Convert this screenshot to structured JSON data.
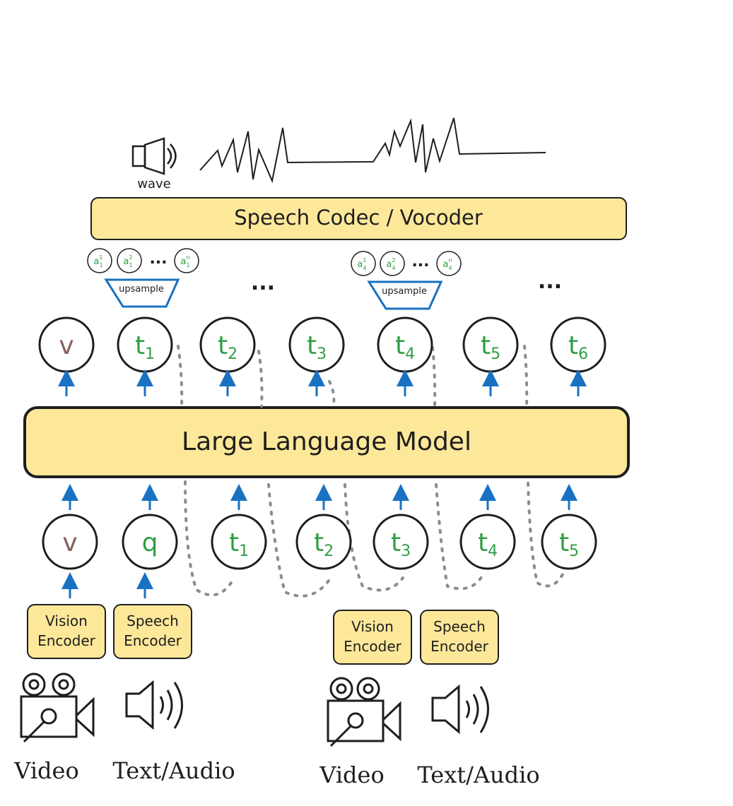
{
  "colors": {
    "yellow": "#fde89a",
    "green": "#2f9e44",
    "brown": "#846358",
    "blue": "#1971c2",
    "gray": "#868e96",
    "stroke": "#1e1e1e"
  },
  "wave_label": "wave",
  "vocoder_label": "Speech Codec / Vocoder",
  "llm_label": "Large Language Model",
  "upsample_label": "upsample",
  "ellipsis": "...",
  "output_row": [
    {
      "base": "v",
      "sub": "",
      "color": "brown"
    },
    {
      "base": "t",
      "sub": "1",
      "color": "green"
    },
    {
      "base": "t",
      "sub": "2",
      "color": "green"
    },
    {
      "base": "t",
      "sub": "3",
      "color": "green"
    },
    {
      "base": "t",
      "sub": "4",
      "color": "green"
    },
    {
      "base": "t",
      "sub": "5",
      "color": "green"
    },
    {
      "base": "t",
      "sub": "6",
      "color": "green"
    }
  ],
  "input_row": [
    {
      "base": "v",
      "sub": "",
      "color": "brown"
    },
    {
      "base": "q",
      "sub": "",
      "color": "green"
    },
    {
      "base": "t",
      "sub": "1",
      "color": "green"
    },
    {
      "base": "t",
      "sub": "2",
      "color": "green"
    },
    {
      "base": "t",
      "sub": "3",
      "color": "green"
    },
    {
      "base": "t",
      "sub": "4",
      "color": "green"
    },
    {
      "base": "t",
      "sub": "5",
      "color": "green"
    }
  ],
  "audio_groups": [
    {
      "tokens": [
        {
          "sup": "1",
          "sub": "1"
        },
        {
          "sup": "2",
          "sub": "1"
        },
        {
          "sup": "n",
          "sub": "1"
        }
      ]
    },
    {
      "tokens": [
        {
          "sup": "1",
          "sub": "4"
        },
        {
          "sup": "2",
          "sub": "4"
        },
        {
          "sup": "n",
          "sub": "4"
        }
      ]
    }
  ],
  "audio_base": "a",
  "encoders": [
    {
      "line1": "Vision",
      "line2": "Encoder"
    },
    {
      "line1": "Speech",
      "line2": "Encoder"
    },
    {
      "line1": "Vision",
      "line2": "Encoder"
    },
    {
      "line1": "Speech",
      "line2": "Encoder"
    }
  ],
  "captions": [
    "Video",
    "Text/Audio",
    "Video",
    "Text/Audio"
  ]
}
